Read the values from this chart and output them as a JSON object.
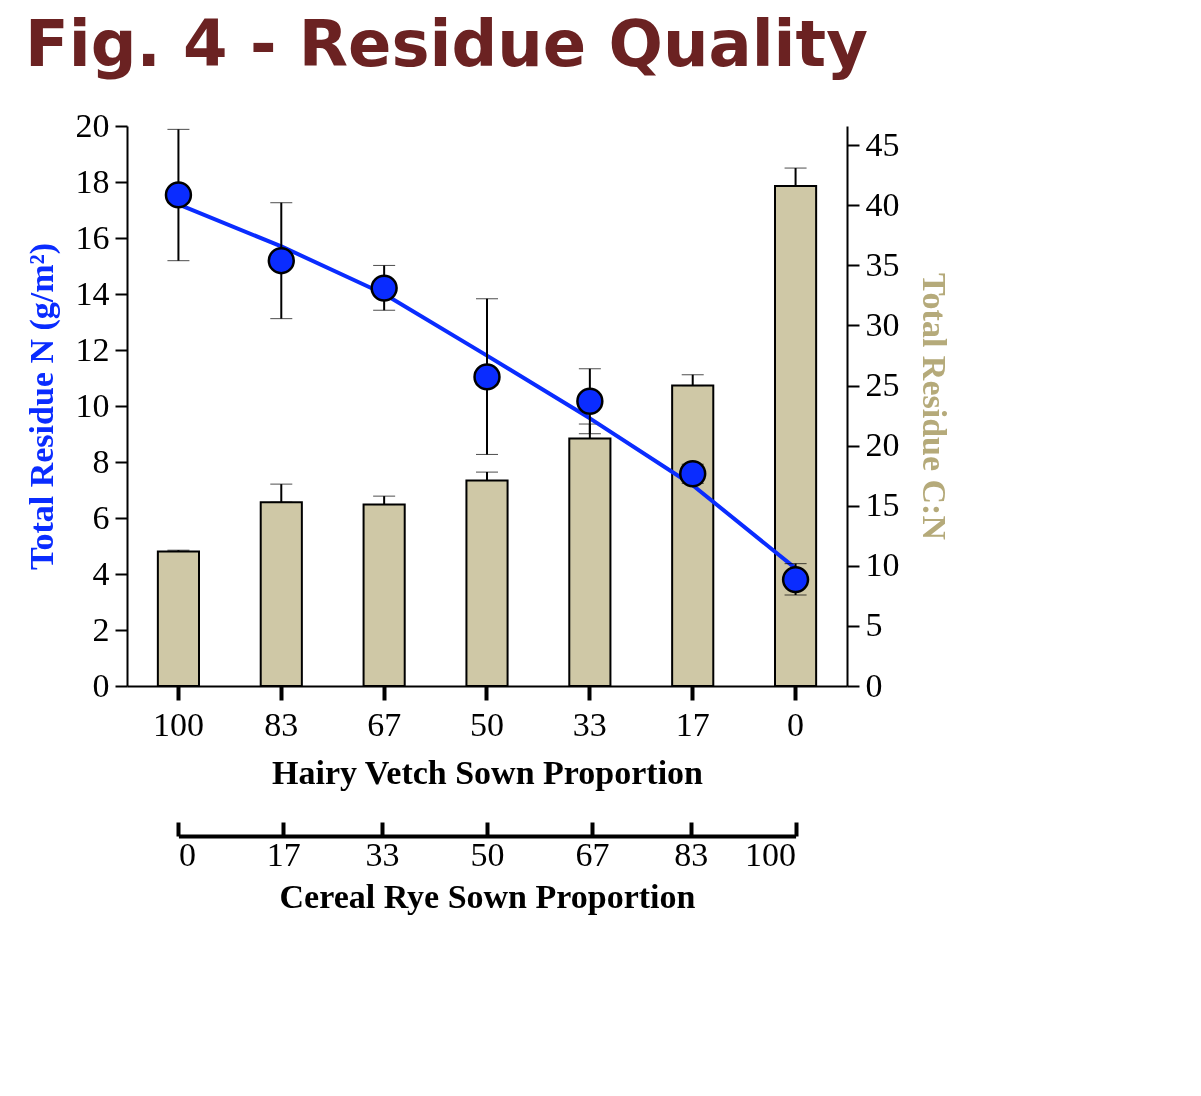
{
  "chart_data": {
    "type": "bar",
    "title": "Fig. 4 - Residue Quality",
    "categories": [
      "100",
      "83",
      "67",
      "50",
      "33",
      "17",
      "0"
    ],
    "xlabel": "Hairy Vetch Sown Proportion",
    "ylabel": "Total Residue N (g/m²)",
    "y2label": "Total Residue C:N",
    "x2label": "Cereal Rye Sown Proportion",
    "x2lim": [
      0,
      100
    ],
    "x2ticks": [
      0,
      17,
      33,
      50,
      67,
      83,
      100
    ],
    "ylim": [
      0,
      20
    ],
    "yticks": [
      0,
      2,
      4,
      6,
      8,
      10,
      12,
      14,
      16,
      18,
      20
    ],
    "y2lim": [
      0,
      46.6
    ],
    "y2ticks": [
      0,
      5,
      10,
      15,
      20,
      25,
      30,
      35,
      40,
      45
    ],
    "series": [
      {
        "axis": "y2",
        "color": "#cfc8a6",
        "values": [
          11.2,
          15.3,
          15.1,
          17.1,
          20.6,
          25.0,
          41.6
        ],
        "errors": [
          [
            11.2,
            11.3
          ],
          [
            15.3,
            16.8
          ],
          [
            15.1,
            15.8
          ],
          [
            17.1,
            17.8
          ],
          [
            20.6,
            21.8
          ],
          [
            25.0,
            25.9
          ],
          [
            41.6,
            43.1
          ]
        ]
      },
      {
        "type": "line",
        "color": "#0a2cff",
        "values": [
          17.2,
          15.7,
          14.0,
          11.8,
          9.56,
          7.17,
          4.2
        ]
      },
      {
        "type": "scatter",
        "color": "#0a2cff",
        "marker": "circle",
        "values": [
          17.54,
          15.19,
          14.21,
          11.04,
          10.17,
          7.58,
          3.8
        ],
        "errors": [
          [
            15.19,
            19.88
          ],
          [
            13.12,
            17.26
          ],
          [
            13.42,
            15.02
          ],
          [
            8.27,
            13.83
          ],
          [
            9.01,
            11.33
          ],
          [
            7.24,
            7.92
          ],
          [
            3.25,
            4.37
          ]
        ]
      }
    ]
  }
}
